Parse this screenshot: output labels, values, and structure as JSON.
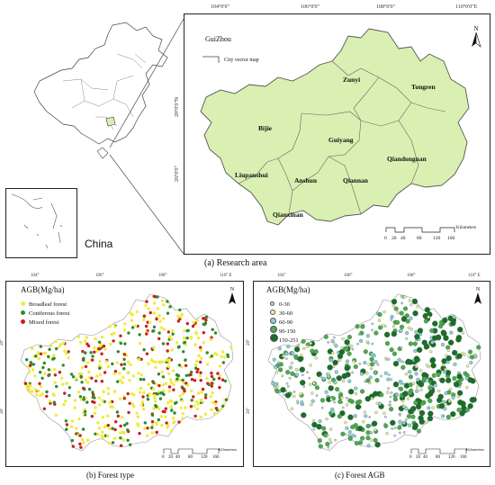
{
  "research_map": {
    "coords_top": [
      "104°0'0\"",
      "106°0'0\"",
      "108°0'0\"",
      "110°0'0\"E"
    ],
    "coords_left": [
      "28°0'0\"N",
      "26°0'0\""
    ],
    "title": "GuiZhou",
    "legend_label": "City vector map",
    "cities": [
      "Zunyi",
      "Tongren",
      "Bijie",
      "Guiyang",
      "Qiandongnan",
      "Liupanshui",
      "Anshun",
      "Qiannan",
      "Qianxinan"
    ],
    "scale_ticks": [
      "0",
      "20",
      "40",
      "80",
      "120",
      "160"
    ],
    "scale_unit": "Kilometers",
    "north": "N",
    "fill_color": "#d9f0b2"
  },
  "china_label": "China",
  "captions": {
    "a": "(a) Research area",
    "b": "(b) Forest type",
    "c": "(c) Forest AGB"
  },
  "panel_b": {
    "coords_top": [
      "104°",
      "106°",
      "108°",
      "110° E"
    ],
    "coords_left": [
      "28°",
      "26°"
    ],
    "legend_title": "AGB(Mg/ha)",
    "legend": [
      {
        "label": "Broadleaf forest",
        "color": "#f2ea3a"
      },
      {
        "label": "Coniferous forest",
        "color": "#2f8a2f"
      },
      {
        "label": "Mixed forest",
        "color": "#c8201e"
      }
    ],
    "scale_ticks": [
      "0",
      "20",
      "40",
      "80",
      "120",
      "160"
    ],
    "scale_unit": "Kilometers",
    "north": "N"
  },
  "panel_c": {
    "coords_top": [
      "104°",
      "106°",
      "108°",
      "110° E"
    ],
    "coords_left": [
      "28°",
      "26°"
    ],
    "legend_title": "AGB(Mg/ha)",
    "legend": [
      {
        "label": "0-30",
        "color": "#b8d8ef"
      },
      {
        "label": "30-60",
        "color": "#f4f0a0"
      },
      {
        "label": "60-90",
        "color": "#8fd0e0"
      },
      {
        "label": "90-150",
        "color": "#4caa4c"
      },
      {
        "label": "150-251",
        "color": "#1a6e2a"
      }
    ],
    "scale_ticks": [
      "0",
      "20",
      "40",
      "80",
      "120",
      "160"
    ],
    "scale_unit": "Kilometers",
    "north": "N"
  }
}
